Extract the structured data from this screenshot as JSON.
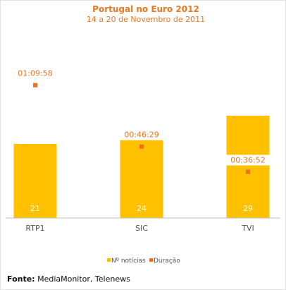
{
  "chart_data": {
    "type": "bar",
    "title": "Portugal no Euro 2012",
    "subtitle": "14 a 20 de Novembro de 2011",
    "categories": [
      "RTP1",
      "SIC",
      "TVI"
    ],
    "series": [
      {
        "name": "Nº notícias",
        "type": "bar",
        "values": [
          21,
          24,
          29
        ],
        "color": "#ffc000"
      },
      {
        "name": "Duração",
        "type": "scatter",
        "values": [
          "01:09:58",
          "00:46:29",
          "00:36:52"
        ],
        "seconds": [
          4198,
          2789,
          2212
        ],
        "color": "#f07020"
      }
    ],
    "legend_position": "bottom",
    "grid": false
  },
  "source": {
    "label": "Fonte:",
    "text": " MediaMonitor, Telenews"
  }
}
